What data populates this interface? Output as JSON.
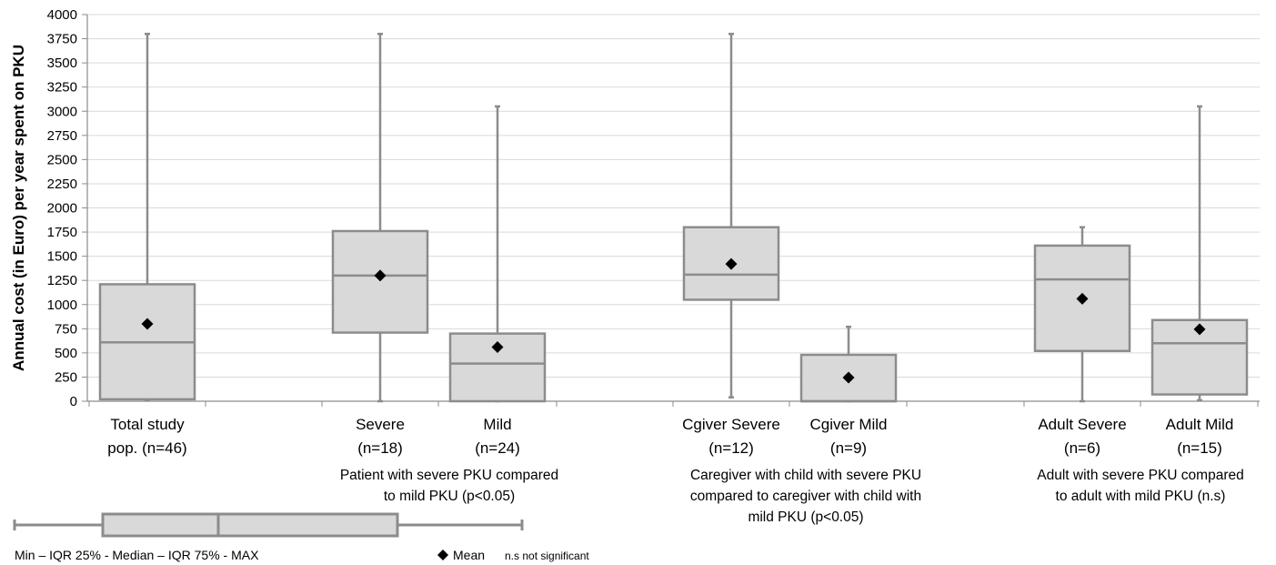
{
  "chart_data": {
    "type": "box",
    "ylabel": "Annual cost (in Euro) per year spent on PKU",
    "ylim": [
      0,
      4000
    ],
    "ytick_step": 250,
    "grid": true,
    "groups": [
      {
        "label_lines": [
          "Total study",
          "pop. (n=46)"
        ],
        "min": 10,
        "q1": 20,
        "median": 610,
        "q3": 1210,
        "max": 3800,
        "mean": 800
      },
      {
        "label_lines": [
          "Severe",
          "(n=18)"
        ],
        "min": 0,
        "q1": 710,
        "median": 1300,
        "q3": 1760,
        "max": 3800,
        "mean": 1300
      },
      {
        "label_lines": [
          "Mild",
          "(n=24)"
        ],
        "min": 0,
        "q1": 0,
        "median": 390,
        "q3": 700,
        "max": 3050,
        "mean": 560
      },
      {
        "label_lines": [
          "Cgiver Severe",
          "(n=12)"
        ],
        "min": 40,
        "q1": 1050,
        "median": 1310,
        "q3": 1800,
        "max": 3800,
        "mean": 1420
      },
      {
        "label_lines": [
          "Cgiver Mild",
          "(n=9)"
        ],
        "min": 0,
        "q1": 0,
        "median": 0,
        "q3": 480,
        "max": 770,
        "mean": 245
      },
      {
        "label_lines": [
          "Adult Severe",
          "(n=6)"
        ],
        "min": 0,
        "q1": 520,
        "median": 1260,
        "q3": 1610,
        "max": 1800,
        "mean": 1060
      },
      {
        "label_lines": [
          "Adult Mild",
          "(n=15)"
        ],
        "min": 10,
        "q1": 70,
        "median": 600,
        "q3": 840,
        "max": 3050,
        "mean": 745
      }
    ],
    "comparisons": [
      {
        "lines": [
          "Patient with severe PKU compared",
          "to mild  PKU (p<0.05)"
        ]
      },
      {
        "lines": [
          "Caregiver with child with severe PKU",
          "compared to caregiver with child with",
          "mild PKU (p<0.05)"
        ]
      },
      {
        "lines": [
          "Adult with severe PKU compared",
          "to adult with mild PKU (n.s)"
        ]
      }
    ],
    "legend": {
      "box_caption": "Min – IQR 25% - Median – IQR 75% - MAX",
      "mean_label": "Mean",
      "ns_note": "n.s not significant"
    }
  }
}
